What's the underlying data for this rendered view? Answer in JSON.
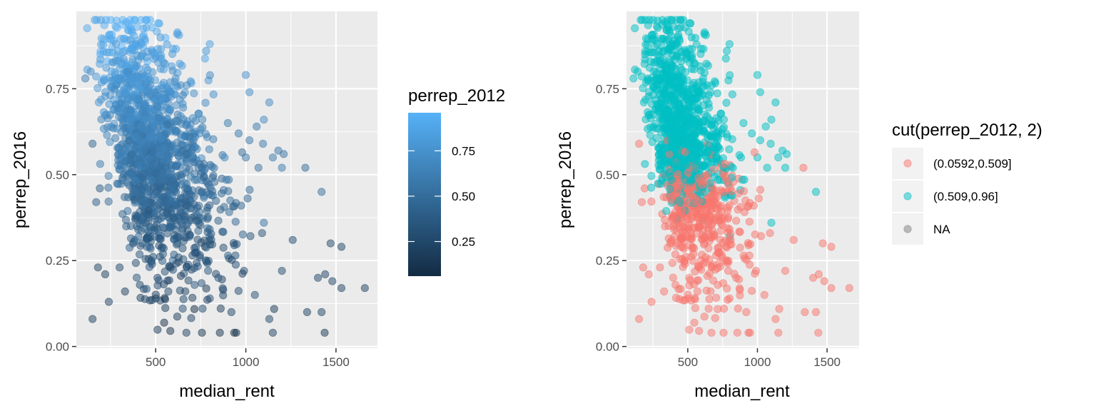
{
  "chart_data": [
    {
      "type": "scatter",
      "xlabel": "median_rent",
      "ylabel": "perrep_2016",
      "xlim": [
        60,
        1730
      ],
      "ylim": [
        -0.005,
        0.975
      ],
      "x_ticks": [
        500,
        1000,
        1500
      ],
      "x_tick_labels": [
        "500",
        "1000",
        "1500"
      ],
      "y_ticks": [
        0,
        0.25,
        0.5,
        0.75
      ],
      "y_tick_labels": [
        "0.00",
        "0.25",
        "0.50",
        "0.75"
      ],
      "grid": true,
      "color_by": "perrep_2012",
      "legend": {
        "title": "perrep_2012",
        "type": "colorbar",
        "position": "right",
        "range": [
          0.0592,
          0.96
        ],
        "ticks": [
          0.25,
          0.5,
          0.75
        ],
        "tick_labels": [
          "0.25",
          "0.50",
          "0.75"
        ],
        "low_color": "#132B43",
        "high_color": "#56B1F7"
      }
    },
    {
      "type": "scatter",
      "xlabel": "median_rent",
      "ylabel": "perrep_2016",
      "xlim": [
        60,
        1730
      ],
      "ylim": [
        -0.005,
        0.975
      ],
      "x_ticks": [
        500,
        1000,
        1500
      ],
      "x_tick_labels": [
        "500",
        "1000",
        "1500"
      ],
      "y_ticks": [
        0,
        0.25,
        0.5,
        0.75
      ],
      "y_tick_labels": [
        "0.00",
        "0.25",
        "0.50",
        "0.75"
      ],
      "grid": true,
      "color_by": "cut(perrep_2012, 2)",
      "legend": {
        "title": "cut(perrep_2012, 2)",
        "type": "discrete",
        "position": "right",
        "items": [
          {
            "label": "(0.0592,0.509]",
            "color": "#F8766D"
          },
          {
            "label": "(0.509,0.96]",
            "color": "#00BFC4"
          },
          {
            "label": "NA",
            "color": "#7F7F7F"
          }
        ]
      }
    }
  ],
  "points": [
    [
      150,
      0.08,
      0.2
    ],
    [
      1150,
      0.04,
      0.2
    ],
    [
      1130,
      0.08,
      0.25
    ],
    [
      1340,
      0.1,
      0.22
    ],
    [
      1420,
      0.1,
      0.24
    ],
    [
      650,
      0.11,
      0.3
    ],
    [
      760,
      0.11,
      0.28
    ],
    [
      920,
      0.1,
      0.24
    ],
    [
      240,
      0.13,
      0.2
    ],
    [
      330,
      0.16,
      0.2
    ],
    [
      570,
      0.16,
      0.26
    ],
    [
      800,
      0.14,
      0.3
    ],
    [
      1050,
      0.15,
      0.3
    ],
    [
      1530,
      0.17,
      0.22
    ],
    [
      1660,
      0.17,
      0.21
    ],
    [
      1480,
      0.19,
      0.25
    ],
    [
      1400,
      0.2,
      0.24
    ],
    [
      180,
      0.23,
      0.22
    ],
    [
      220,
      0.21,
      0.2
    ],
    [
      300,
      0.23,
      0.25
    ],
    [
      480,
      0.24,
      0.27
    ],
    [
      990,
      0.22,
      0.3
    ],
    [
      1200,
      0.22,
      0.28
    ],
    [
      1440,
      0.21,
      0.23
    ],
    [
      1470,
      0.3,
      0.26
    ],
    [
      1530,
      0.29,
      0.24
    ],
    [
      1260,
      0.31,
      0.27
    ],
    [
      1090,
      0.33,
      0.3
    ],
    [
      170,
      0.42,
      0.4
    ],
    [
      190,
      0.46,
      0.38
    ],
    [
      150,
      0.59,
      0.45
    ],
    [
      110,
      0.78,
      0.62
    ],
    [
      140,
      0.8,
      0.7
    ],
    [
      800,
      0.32,
      0.55
    ],
    [
      1100,
      0.36,
      0.54
    ],
    [
      1420,
      0.45,
      0.52
    ],
    [
      1000,
      0.79,
      0.74
    ],
    [
      1020,
      0.74,
      0.72
    ],
    [
      1130,
      0.71,
      0.7
    ],
    [
      1100,
      0.66,
      0.7
    ],
    [
      780,
      0.86,
      0.8
    ],
    [
      800,
      0.88,
      0.84
    ],
    [
      450,
      0.95,
      0.9
    ],
    [
      520,
      0.94,
      0.88
    ],
    [
      350,
      0.92,
      0.86
    ],
    [
      1210,
      0.56,
      0.55
    ],
    [
      1180,
      0.57,
      0.56
    ],
    [
      1020,
      0.6,
      0.58
    ],
    [
      1070,
      0.52,
      0.53
    ],
    [
      1000,
      0.55,
      0.57
    ],
    [
      1330,
      0.52,
      0.5
    ],
    [
      1200,
      0.52,
      0.6
    ],
    [
      1150,
      0.55,
      0.58
    ],
    [
      900,
      0.65,
      0.6
    ],
    [
      1060,
      0.64,
      0.58
    ],
    [
      960,
      0.62,
      0.56
    ]
  ]
}
